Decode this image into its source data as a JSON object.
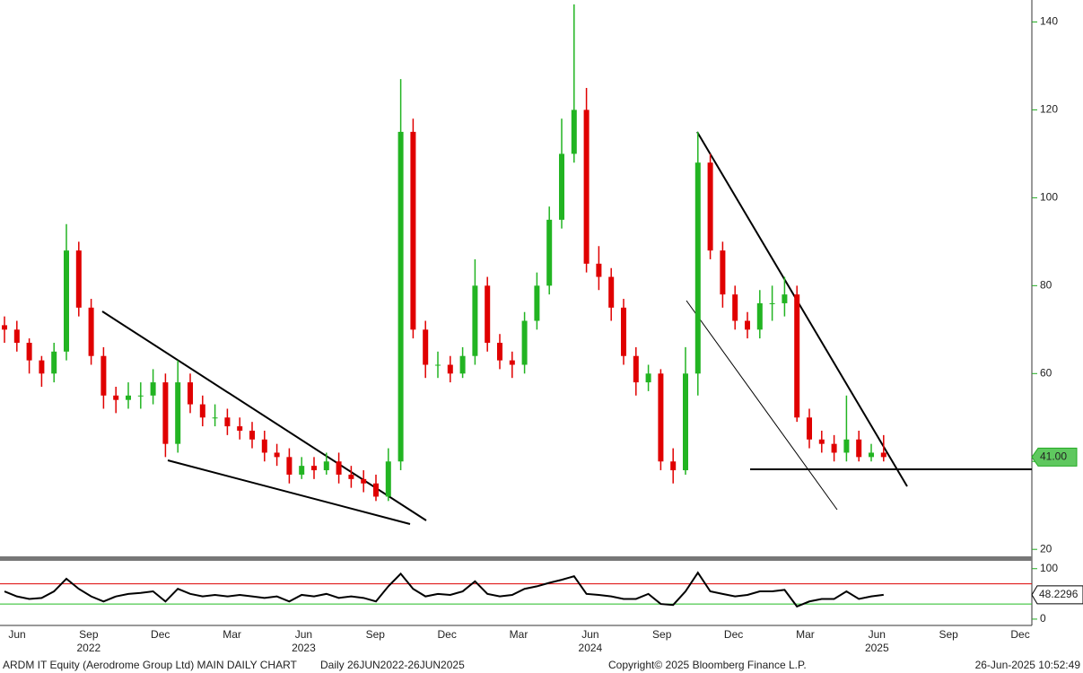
{
  "chart_data": {
    "type": "candlestick",
    "title": "ARDM IT Equity (Aerodrome Group Ltd) MAIN DAILY CHART",
    "subtitle": "Daily 26JUN2022-26JUN2025",
    "copyright": "Copyright© 2025 Bloomberg Finance L.P.",
    "timestamp": "26-Jun-2025 10:52:49",
    "x_labels": [
      "Jun",
      "Sep",
      "Dec",
      "Mar",
      "Jun",
      "Sep",
      "Dec",
      "Mar",
      "Jun",
      "Sep",
      "Dec",
      "Mar",
      "Jun",
      "Sep",
      "Dec"
    ],
    "year_labels": [
      "2022",
      "2023",
      "2024",
      "2025"
    ],
    "up_color": "#22b422",
    "down_color": "#e00000",
    "series": {
      "open": [
        71,
        70,
        67,
        63,
        60,
        65,
        88,
        75,
        64,
        55,
        54,
        55,
        55,
        58,
        44,
        58,
        53,
        50,
        50,
        48,
        47,
        45,
        42,
        41,
        37,
        39,
        38,
        40,
        37,
        36,
        35,
        32,
        40,
        115,
        70,
        62,
        62,
        60,
        64,
        80,
        67,
        63,
        62,
        72,
        80,
        95,
        110,
        120,
        85,
        82,
        75,
        64,
        58,
        60,
        40,
        38,
        60,
        108,
        88,
        78,
        72,
        70,
        76,
        76,
        78,
        50,
        45,
        44,
        42,
        45,
        41,
        42
      ],
      "high": [
        73,
        72,
        68,
        64,
        67,
        94,
        90,
        77,
        66,
        57,
        58,
        58,
        61,
        60,
        63,
        60,
        55,
        53,
        52,
        50,
        49,
        47,
        44,
        43,
        41,
        41,
        42,
        42,
        39,
        38,
        37,
        43,
        127,
        118,
        72,
        65,
        64,
        66,
        86,
        82,
        69,
        65,
        74,
        83,
        98,
        118,
        144,
        125,
        89,
        84,
        77,
        66,
        62,
        61,
        43,
        66,
        115,
        110,
        90,
        80,
        74,
        79,
        80,
        82,
        80,
        52,
        47,
        46,
        55,
        47,
        44,
        46
      ],
      "low": [
        67,
        65,
        60,
        57,
        58,
        63,
        73,
        62,
        52,
        51,
        52,
        52,
        53,
        41,
        42,
        51,
        48,
        48,
        46,
        45,
        43,
        40,
        39,
        35,
        36,
        36,
        37,
        35,
        34,
        33,
        31,
        31,
        38,
        68,
        59,
        59,
        58,
        59,
        62,
        65,
        61,
        59,
        60,
        70,
        78,
        93,
        108,
        83,
        79,
        72,
        62,
        55,
        56,
        38,
        35,
        37,
        55,
        86,
        75,
        70,
        68,
        68,
        72,
        73,
        49,
        43,
        42,
        40,
        40,
        40,
        40,
        40
      ],
      "close": [
        70,
        67,
        63,
        60,
        65,
        88,
        75,
        64,
        55,
        54,
        55,
        55,
        58,
        44,
        58,
        53,
        50,
        50,
        48,
        47,
        45,
        42,
        41,
        37,
        39,
        38,
        40,
        37,
        36,
        35,
        32,
        40,
        115,
        70,
        62,
        62,
        60,
        64,
        80,
        67,
        63,
        62,
        72,
        80,
        95,
        110,
        120,
        85,
        82,
        75,
        64,
        58,
        60,
        40,
        38,
        60,
        108,
        88,
        78,
        72,
        70,
        76,
        76,
        78,
        50,
        45,
        44,
        42,
        45,
        41,
        42,
        41
      ]
    },
    "last_label": "41.00",
    "ylim": [
      18,
      145
    ],
    "yticks": [
      20,
      40,
      60,
      80,
      100,
      120,
      140
    ],
    "indicator": {
      "type": "line",
      "color": "#000000",
      "values": [
        55,
        45,
        40,
        42,
        55,
        80,
        60,
        45,
        35,
        45,
        50,
        52,
        55,
        35,
        60,
        50,
        45,
        48,
        45,
        48,
        45,
        42,
        45,
        35,
        48,
        45,
        50,
        42,
        45,
        42,
        35,
        65,
        90,
        60,
        45,
        50,
        48,
        55,
        75,
        50,
        45,
        48,
        60,
        65,
        72,
        78,
        85,
        50,
        48,
        45,
        40,
        40,
        50,
        30,
        28,
        55,
        92,
        55,
        50,
        45,
        48,
        55,
        55,
        58,
        25,
        35,
        40,
        40,
        55,
        40,
        45,
        48.2296
      ],
      "last_label": "48.2296",
      "ylim": [
        -9,
        112
      ],
      "yticks": [
        0,
        100
      ],
      "overbought": 70,
      "oversold": 30
    }
  }
}
